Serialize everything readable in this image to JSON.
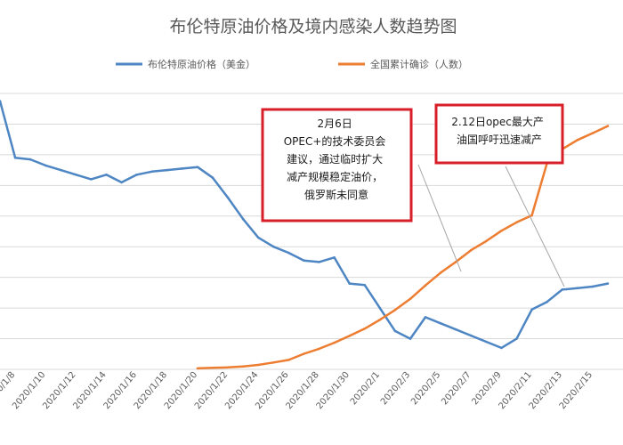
{
  "chart_data": {
    "type": "line",
    "title": "布伦特原油价格及境内感染人数趋势图",
    "xlabel": "",
    "ylabel": "",
    "grid": true,
    "legend_position": "top",
    "series": [
      {
        "name": "布伦特原油价格（美金）",
        "color": "#4e86c4",
        "axis": "left",
        "x": [
          "2020/1/7",
          "2020/1/8",
          "2020/1/9",
          "2020/1/10",
          "2020/1/11",
          "2020/1/12",
          "2020/1/13",
          "2020/1/14",
          "2020/1/15",
          "2020/1/16",
          "2020/1/17",
          "2020/1/18",
          "2020/1/19",
          "2020/1/20",
          "2020/1/21",
          "2020/1/22",
          "2020/1/23",
          "2020/1/24",
          "2020/1/25",
          "2020/1/26",
          "2020/1/27",
          "2020/1/28",
          "2020/1/29",
          "2020/1/30",
          "2020/1/31",
          "2020/2/1",
          "2020/2/2",
          "2020/2/3",
          "2020/2/4",
          "2020/2/5",
          "2020/2/6",
          "2020/2/7",
          "2020/2/8",
          "2020/2/9",
          "2020/2/10",
          "2020/2/11",
          "2020/2/12",
          "2020/2/13",
          "2020/2/14",
          "2020/2/15",
          "2020/2/16"
        ],
        "values": [
          69.5,
          65.8,
          65.7,
          65.3,
          65.0,
          64.7,
          64.4,
          64.7,
          64.2,
          64.7,
          64.9,
          65.0,
          65.1,
          65.2,
          64.5,
          63.2,
          61.8,
          60.6,
          60.0,
          59.6,
          59.1,
          59.0,
          59.3,
          57.6,
          57.5,
          56.0,
          54.5,
          54.0,
          55.4,
          55.0,
          54.6,
          54.2,
          53.8,
          53.4,
          54.0,
          55.9,
          56.4,
          57.2,
          57.3,
          57.4,
          57.6
        ]
      },
      {
        "name": "全国累计确诊（人数）",
        "color": "#ed7d31",
        "axis": "right",
        "x": [
          "2020/1/20",
          "2020/1/21",
          "2020/1/22",
          "2020/1/23",
          "2020/1/24",
          "2020/1/25",
          "2020/1/26",
          "2020/1/27",
          "2020/1/28",
          "2020/1/29",
          "2020/1/30",
          "2020/1/31",
          "2020/2/1",
          "2020/2/2",
          "2020/2/3",
          "2020/2/4",
          "2020/2/5",
          "2020/2/6",
          "2020/2/7",
          "2020/2/8",
          "2020/2/9",
          "2020/2/10",
          "2020/2/11",
          "2020/2/12",
          "2020/2/13",
          "2020/2/14",
          "2020/2/15",
          "2020/2/16"
        ],
        "values": [
          291,
          440,
          571,
          830,
          1287,
          1975,
          2744,
          4515,
          5974,
          7711,
          9692,
          11791,
          14380,
          17205,
          20438,
          24324,
          28018,
          31161,
          34546,
          37198,
          40171,
          42638,
          44653,
          59804,
          63851,
          66492,
          68500,
          70548
        ]
      }
    ],
    "ylim_left": [
      52,
      70
    ],
    "ylim_right": [
      0,
      80000
    ]
  },
  "annotations": [
    {
      "lines": [
        "2月6日",
        "OPEC+的技术委员会",
        "建议，通过临时扩大",
        "减产规模稳定油价，",
        "俄罗斯未同意"
      ]
    },
    {
      "lines": [
        "2.12日opec最大产",
        "油国呼吁迅速减产"
      ]
    }
  ],
  "colors": {
    "annotation_border": "#d81e28",
    "grid": "#d9d9d9",
    "pointer": "#a6a6a6"
  }
}
